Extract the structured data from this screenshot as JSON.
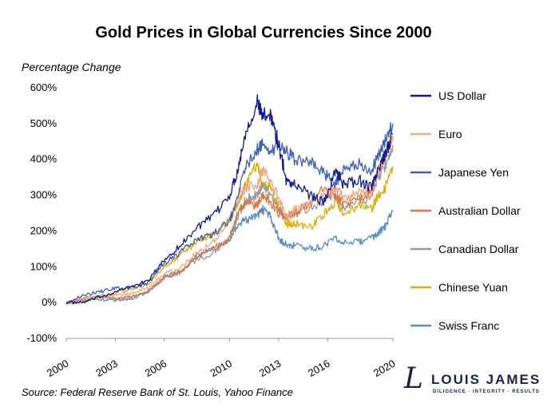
{
  "chart_data": {
    "type": "line",
    "title": "Gold Prices in Global Currencies Since 2000",
    "ylabel": "Percentage Change",
    "xlabel": "",
    "ylim": [
      -100,
      600
    ],
    "xlim": [
      2000,
      2020
    ],
    "y_ticks": [
      "-100%",
      "0%",
      "100%",
      "200%",
      "300%",
      "400%",
      "500%",
      "600%"
    ],
    "x_ticks": [
      "2000",
      "2003",
      "2006",
      "2010",
      "2013",
      "2016",
      "2020"
    ],
    "x_tick_values": [
      2000,
      2003,
      2006,
      2010,
      2013,
      2016,
      2020
    ],
    "legend_position": "right",
    "grid": false,
    "x": [
      2000,
      2001,
      2002,
      2003,
      2004,
      2005,
      2006,
      2007,
      2008,
      2009,
      2010,
      2010.5,
      2011,
      2011.7,
      2012,
      2012.5,
      2013,
      2013.5,
      2014,
      2015,
      2015.8,
      2016.5,
      2017,
      2018,
      2018.7,
      2019,
      2019.5,
      2020
    ],
    "series": [
      {
        "name": "US Dollar",
        "color": "#0c1a9e",
        "values": [
          0,
          0,
          15,
          30,
          45,
          60,
          120,
          160,
          210,
          240,
          300,
          370,
          480,
          560,
          520,
          530,
          440,
          340,
          330,
          300,
          280,
          370,
          330,
          340,
          320,
          360,
          410,
          470
        ]
      },
      {
        "name": "Euro",
        "color": "#f4a582",
        "values": [
          0,
          10,
          20,
          20,
          25,
          40,
          80,
          100,
          140,
          170,
          230,
          290,
          320,
          330,
          370,
          340,
          290,
          240,
          260,
          280,
          300,
          320,
          290,
          310,
          300,
          350,
          410,
          450
        ]
      },
      {
        "name": "Japanese Yen",
        "color": "#3b5fbf",
        "values": [
          0,
          20,
          30,
          40,
          40,
          55,
          110,
          140,
          180,
          190,
          230,
          300,
          380,
          430,
          440,
          420,
          440,
          420,
          400,
          390,
          360,
          330,
          380,
          390,
          370,
          400,
          450,
          500
        ]
      },
      {
        "name": "Australian Dollar",
        "color": "#e07339",
        "values": [
          0,
          10,
          20,
          10,
          15,
          30,
          70,
          85,
          130,
          150,
          180,
          250,
          280,
          270,
          300,
          280,
          250,
          240,
          250,
          280,
          320,
          300,
          280,
          290,
          310,
          360,
          410,
          460
        ]
      },
      {
        "name": "Canadian Dollar",
        "color": "#999999",
        "values": [
          0,
          5,
          15,
          10,
          15,
          30,
          70,
          85,
          120,
          140,
          180,
          240,
          290,
          300,
          330,
          300,
          260,
          240,
          250,
          260,
          290,
          300,
          270,
          280,
          300,
          340,
          380,
          440
        ]
      },
      {
        "name": "Chinese Yuan",
        "color": "#e0ad00",
        "values": [
          0,
          0,
          15,
          25,
          40,
          50,
          100,
          130,
          170,
          190,
          230,
          280,
          330,
          390,
          330,
          320,
          270,
          220,
          220,
          210,
          250,
          280,
          250,
          270,
          260,
          290,
          320,
          380
        ]
      },
      {
        "name": "Swiss Franc",
        "color": "#5b8ec4",
        "values": [
          0,
          5,
          10,
          5,
          10,
          30,
          70,
          90,
          130,
          150,
          170,
          220,
          230,
          240,
          260,
          240,
          180,
          160,
          160,
          150,
          160,
          180,
          170,
          170,
          180,
          190,
          210,
          255
        ]
      }
    ]
  },
  "source_text": "Source: Federal Reserve Bank of St. Louis, Yahoo Finance",
  "logo": {
    "mark": "L",
    "name": "LOUIS JAMES",
    "tagline": "DILIGENCE · INTEGRITY · RESULTS",
    "color": "#17234e"
  }
}
